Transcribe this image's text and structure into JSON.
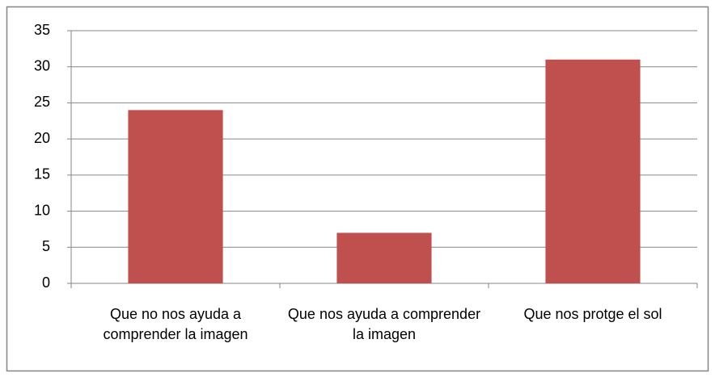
{
  "chart_data": {
    "type": "bar",
    "categories": [
      "Que no nos ayuda a comprender la imagen",
      "Que nos ayuda a comprender la imagen",
      "Que nos protge el sol"
    ],
    "values": [
      24,
      7,
      31
    ],
    "color": "#c0504d",
    "ylim": [
      0,
      35
    ],
    "yticks": [
      0,
      5,
      10,
      15,
      20,
      25,
      30,
      35
    ],
    "grid": true
  }
}
